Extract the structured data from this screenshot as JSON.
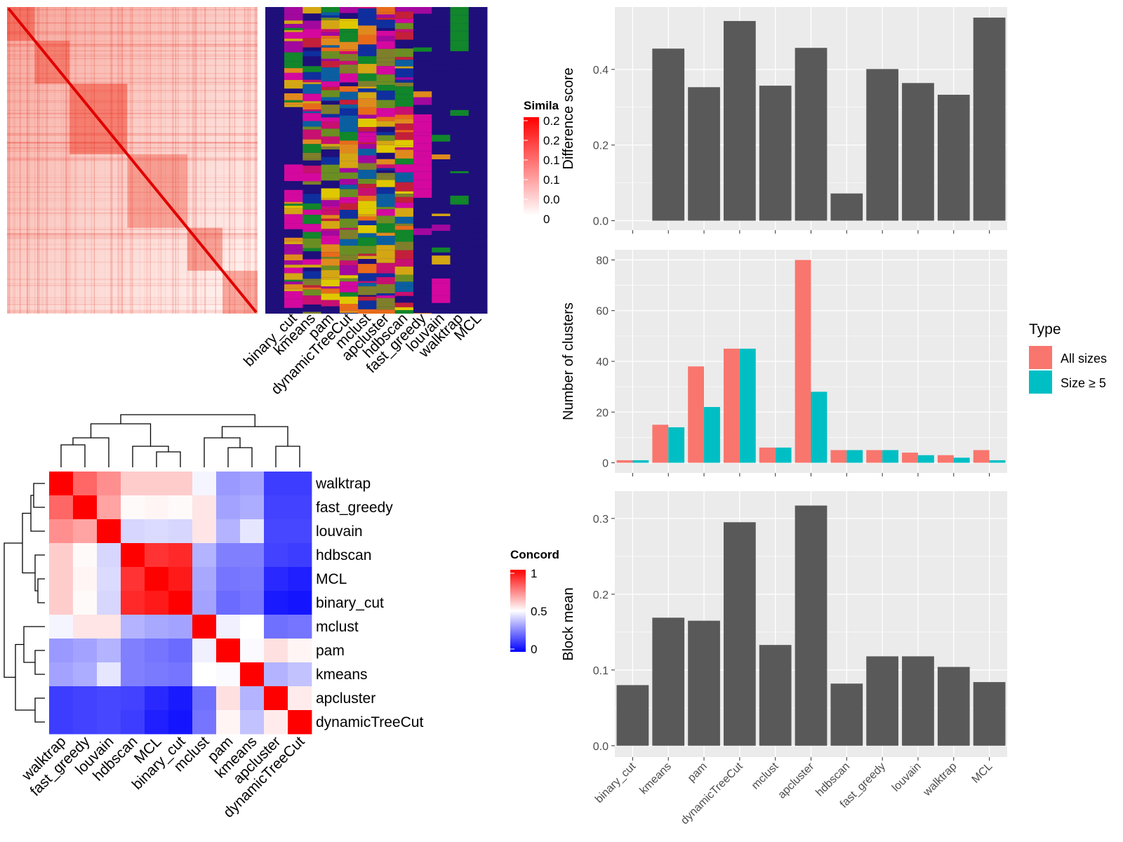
{
  "colors": {
    "bar_grey": "#595959",
    "panel_bg": "#ebebeb",
    "grid": "#ffffff",
    "all_sizes": "#f8766d",
    "size5": "#00bfc4",
    "sim_high": "#ff0000",
    "conc_low": "#0000ff",
    "conc_mid": "#ffffff",
    "conc_high": "#ff0000",
    "assign_bg": "#1f0f7a"
  },
  "similarity_heatmap": {
    "legend_title": "Simila",
    "legend_labels": [
      "0.2",
      "0.2",
      "0.1",
      "0.1",
      "0.0",
      "0"
    ],
    "method_labels": [
      "binary_cut",
      "kmeans",
      "pam",
      "dynamicTreeCut",
      "mclust",
      "apcluster",
      "hdbscan",
      "fast_greedy",
      "louvain",
      "walktrap",
      "MCL"
    ]
  },
  "concordance_heatmap": {
    "legend_title": "Concord",
    "legend_labels": [
      "1",
      "0.5",
      "0"
    ],
    "row_labels": [
      "walktrap",
      "fast_greedy",
      "louvain",
      "hdbscan",
      "MCL",
      "binary_cut",
      "mclust",
      "pam",
      "kmeans",
      "apcluster",
      "dynamicTreeCut"
    ],
    "col_labels": [
      "walktrap",
      "fast_greedy",
      "louvain",
      "hdbscan",
      "MCL",
      "binary_cut",
      "mclust",
      "pam",
      "kmeans",
      "apcluster",
      "dynamicTreeCut"
    ],
    "matrix": [
      [
        1.0,
        0.8,
        0.72,
        0.6,
        0.6,
        0.6,
        0.48,
        0.3,
        0.32,
        0.12,
        0.12
      ],
      [
        0.8,
        1.0,
        0.68,
        0.51,
        0.52,
        0.51,
        0.55,
        0.32,
        0.34,
        0.13,
        0.13
      ],
      [
        0.72,
        0.68,
        1.0,
        0.42,
        0.43,
        0.42,
        0.55,
        0.35,
        0.45,
        0.14,
        0.14
      ],
      [
        0.6,
        0.51,
        0.42,
        1.0,
        0.9,
        0.92,
        0.35,
        0.25,
        0.25,
        0.13,
        0.12
      ],
      [
        0.6,
        0.52,
        0.43,
        0.9,
        1.0,
        0.95,
        0.33,
        0.23,
        0.24,
        0.08,
        0.06
      ],
      [
        0.6,
        0.51,
        0.42,
        0.92,
        0.95,
        1.0,
        0.32,
        0.21,
        0.23,
        0.05,
        0.04
      ],
      [
        0.48,
        0.55,
        0.55,
        0.35,
        0.33,
        0.32,
        1.0,
        0.47,
        0.5,
        0.22,
        0.23
      ],
      [
        0.3,
        0.32,
        0.35,
        0.25,
        0.23,
        0.21,
        0.47,
        1.0,
        0.49,
        0.56,
        0.52
      ],
      [
        0.32,
        0.34,
        0.45,
        0.25,
        0.24,
        0.23,
        0.5,
        0.49,
        1.0,
        0.35,
        0.38
      ],
      [
        0.12,
        0.13,
        0.14,
        0.13,
        0.08,
        0.05,
        0.22,
        0.56,
        0.35,
        1.0,
        0.54
      ],
      [
        0.12,
        0.13,
        0.14,
        0.12,
        0.06,
        0.04,
        0.23,
        0.52,
        0.38,
        0.54,
        1.0
      ]
    ]
  },
  "chart_data": [
    {
      "type": "bar",
      "categories": [
        "binary_cut",
        "kmeans",
        "pam",
        "dynamicTreeCut",
        "mclust",
        "apcluster",
        "hdbscan",
        "fast_greedy",
        "louvain",
        "walktrap",
        "MCL"
      ],
      "values": [
        0.0,
        0.455,
        0.353,
        0.528,
        0.357,
        0.457,
        0.072,
        0.401,
        0.364,
        0.333,
        0.537
      ],
      "ylabel": "Difference score",
      "ylim": [
        -0.025,
        0.565
      ],
      "yticks": [
        0.0,
        0.2,
        0.4
      ],
      "ytick_labels": [
        "0.0",
        "0.2",
        "0.4"
      ],
      "grid": true
    },
    {
      "type": "bar",
      "categories": [
        "binary_cut",
        "kmeans",
        "pam",
        "dynamicTreeCut",
        "mclust",
        "apcluster",
        "hdbscan",
        "fast_greedy",
        "louvain",
        "walktrap",
        "MCL"
      ],
      "series": [
        {
          "name": "All sizes",
          "values": [
            1,
            15,
            38,
            45,
            6,
            80,
            5,
            5,
            4,
            3,
            5
          ]
        },
        {
          "name": "Size ≥ 5",
          "values": [
            1,
            14,
            22,
            45,
            6,
            28,
            5,
            5,
            3,
            2,
            1
          ]
        }
      ],
      "ylabel": "Number of clusters",
      "ylim": [
        -4,
        84
      ],
      "yticks": [
        0,
        20,
        40,
        60,
        80
      ],
      "ytick_labels": [
        "0",
        "20",
        "40",
        "60",
        "80"
      ],
      "legend_title": "Type",
      "legend_position": "right",
      "grid": true
    },
    {
      "type": "bar",
      "categories": [
        "binary_cut",
        "kmeans",
        "pam",
        "dynamicTreeCut",
        "mclust",
        "apcluster",
        "hdbscan",
        "fast_greedy",
        "louvain",
        "walktrap",
        "MCL"
      ],
      "values": [
        0.08,
        0.169,
        0.165,
        0.295,
        0.133,
        0.317,
        0.082,
        0.118,
        0.118,
        0.104,
        0.084
      ],
      "ylabel": "Block mean",
      "ylim": [
        -0.015,
        0.336
      ],
      "yticks": [
        0.0,
        0.1,
        0.2,
        0.3
      ],
      "ytick_labels": [
        "0.0",
        "0.1",
        "0.2",
        "0.3"
      ],
      "grid": true
    }
  ]
}
